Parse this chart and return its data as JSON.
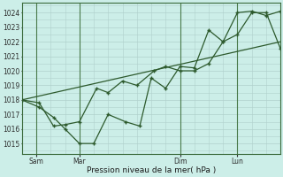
{
  "bg_color": "#cceee8",
  "grid_color": "#b0d0cc",
  "line_color": "#2d5a2d",
  "marker_color": "#2d5a2d",
  "xlabel": "Pression niveau de la mer( hPa )",
  "yticks": [
    1015,
    1016,
    1017,
    1018,
    1019,
    1020,
    1021,
    1022,
    1023,
    1024
  ],
  "ylim": [
    1014.3,
    1024.7
  ],
  "xlim": [
    0.0,
    9.0
  ],
  "xtick_labels": [
    "Sam",
    "Mar",
    "Dim",
    "Lun"
  ],
  "xtick_positions": [
    0.5,
    2.0,
    5.5,
    7.5
  ],
  "vline_positions": [
    0.5,
    2.0,
    5.5,
    7.5
  ],
  "series1_x": [
    0.0,
    0.6,
    1.1,
    1.5,
    2.0,
    2.5,
    3.0,
    3.6,
    4.1,
    4.5,
    5.0,
    5.5,
    6.0,
    6.5,
    7.0,
    7.5,
    8.0,
    8.5,
    9.0
  ],
  "series1_y": [
    1018.0,
    1017.5,
    1016.8,
    1016.0,
    1015.0,
    1015.0,
    1017.0,
    1016.5,
    1016.2,
    1019.5,
    1018.8,
    1020.3,
    1020.2,
    1022.8,
    1022.0,
    1024.0,
    1024.1,
    1023.8,
    1024.1
  ],
  "series2_x": [
    0.0,
    0.6,
    1.1,
    1.5,
    2.0,
    2.6,
    3.0,
    3.5,
    4.0,
    4.6,
    5.0,
    5.5,
    6.0,
    6.5,
    7.0,
    7.5,
    8.0,
    8.5,
    9.0
  ],
  "series2_y": [
    1018.0,
    1017.8,
    1016.2,
    1016.3,
    1016.5,
    1018.8,
    1018.5,
    1019.3,
    1019.0,
    1020.0,
    1020.3,
    1020.0,
    1020.0,
    1020.5,
    1022.0,
    1022.5,
    1024.0,
    1024.0,
    1021.5
  ],
  "series3_x": [
    0.0,
    9.0
  ],
  "series3_y": [
    1018.0,
    1022.0
  ],
  "figsize": [
    3.2,
    2.0
  ],
  "dpi": 100
}
